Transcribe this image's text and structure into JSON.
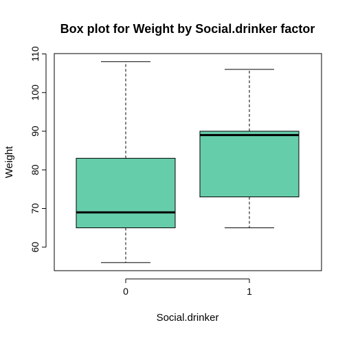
{
  "chart_data": {
    "type": "box",
    "title": "Box plot for Weight by Social.drinker factor",
    "xlabel": "Social.drinker",
    "ylabel": "Weight",
    "categories": [
      "0",
      "1"
    ],
    "ylim": [
      54,
      110
    ],
    "yticks": [
      60,
      70,
      80,
      90,
      100,
      110
    ],
    "grid": false,
    "box_color": "#66CDAA",
    "boxes": [
      {
        "category": "0",
        "min": 56,
        "q1": 65,
        "median": 69,
        "q3": 83,
        "max": 108
      },
      {
        "category": "1",
        "min": 65,
        "q1": 73,
        "median": 89,
        "q3": 90,
        "max": 106
      }
    ]
  }
}
